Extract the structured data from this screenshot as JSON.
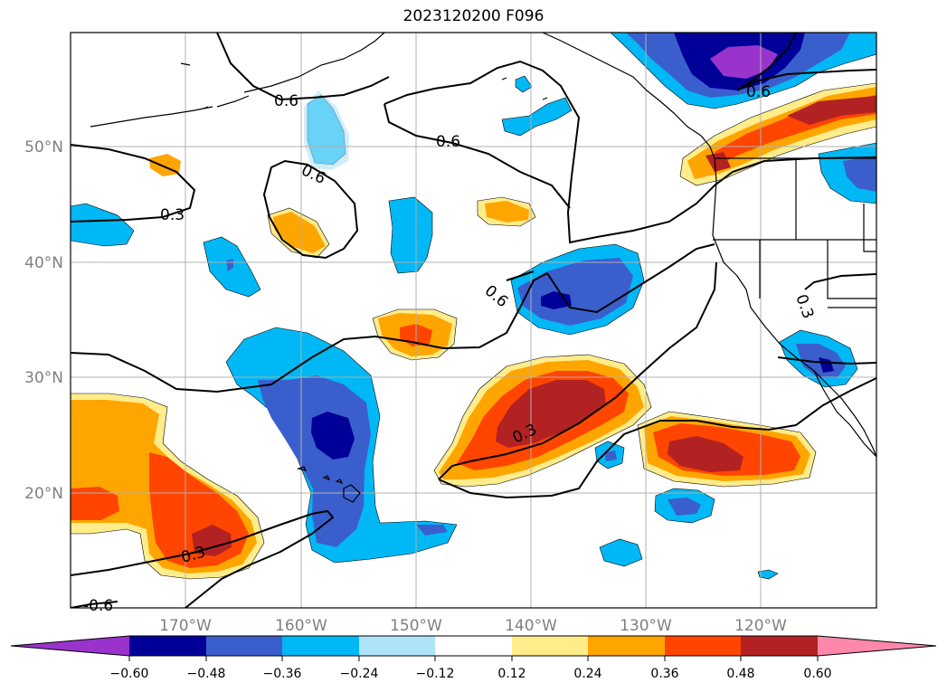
{
  "title": "2023120200 F096",
  "colors": {
    "bins": [
      "#9933cc",
      "#000099",
      "#3a5fcd",
      "#00b8f5",
      "#aee3f8",
      "#ffffff",
      "#ffec8b",
      "#ffa500",
      "#ff4500",
      "#b22222",
      "#ff88aa"
    ],
    "map_lines": "#000000",
    "grid": "#b0b0b0",
    "axis_text": "#7f7f7f"
  },
  "axes": {
    "lat_labels": [
      "50°N",
      "40°N",
      "30°N",
      "20°N"
    ],
    "lon_labels": [
      "170°W",
      "160°W",
      "150°W",
      "140°W",
      "130°W",
      "120°W"
    ]
  },
  "colorbar": {
    "ticks": [
      "−0.60",
      "−0.48",
      "−0.36",
      "−0.24",
      "−0.12",
      "0.12",
      "0.24",
      "0.36",
      "0.48",
      "0.60"
    ]
  },
  "contour_labels": [
    "0.6",
    "0.6",
    "0.6",
    "0.6",
    "0.6",
    "0.3",
    "0.3",
    "0.3",
    "0.3",
    "-0.6"
  ],
  "features": {
    "negative_anomalies": [
      {
        "name": "gulf-of-alaska-low",
        "lat": 56,
        "lon": -125,
        "level": "-0.60"
      },
      {
        "name": "central-pacific-low",
        "lat": 25,
        "lon": -158,
        "level": "-0.48"
      },
      {
        "name": "northeast-pacific-low",
        "lat": 37,
        "lon": -140,
        "level": "-0.48"
      }
    ],
    "positive_anomalies": [
      {
        "name": "subtropical-high",
        "lat": 27,
        "lon": -140,
        "level": "0.48"
      },
      {
        "name": "pacific-northwest-band",
        "lat": 51,
        "lon": -118,
        "level": "0.48"
      },
      {
        "name": "hawaiian-high",
        "lat": 16,
        "lon": -168,
        "level": "0.48"
      },
      {
        "name": "eastern-subtropical-high",
        "lat": 23,
        "lon": -126,
        "level": "0.48"
      }
    ]
  }
}
